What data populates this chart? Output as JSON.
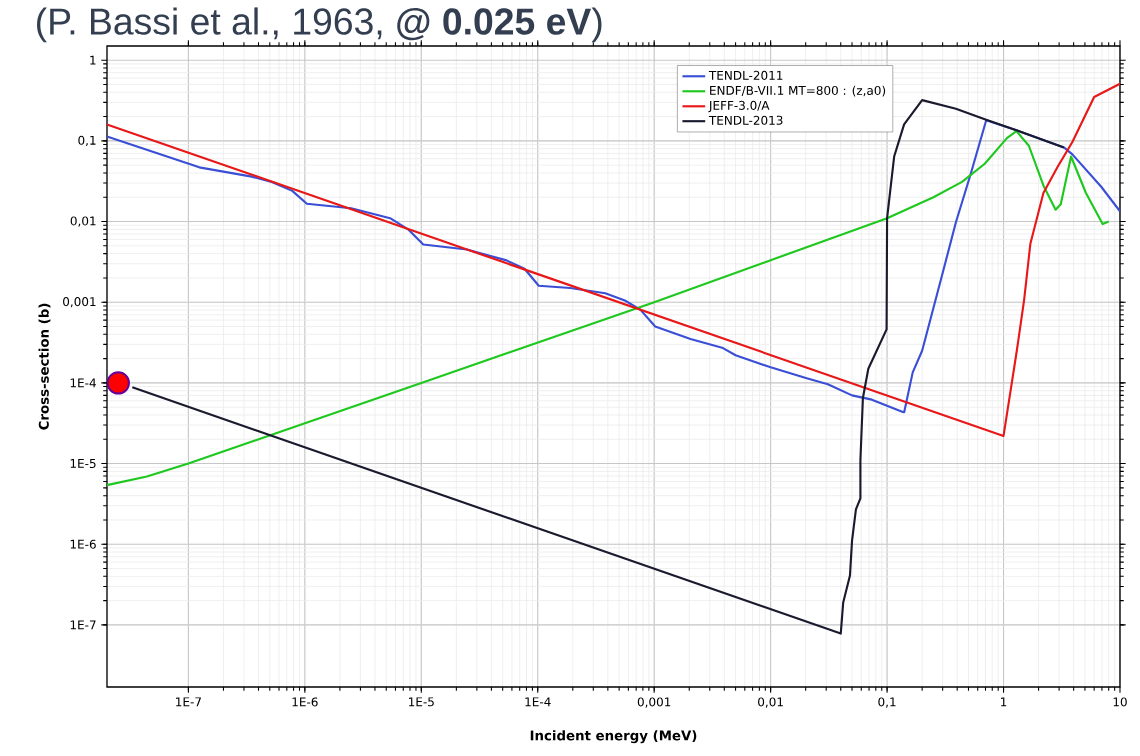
{
  "chart_data": {
    "type": "line",
    "title": "(P. Bassi et al., 1963, **@ 0.025 eV**)",
    "xlabel": "Incident energy (MeV)",
    "ylabel": "Cross-section (b)",
    "log": "xy",
    "grid": true,
    "legend": "top right",
    "xlim": [
      2e-08,
      10
    ],
    "ylim": [
      1.7e-08,
      1.5
    ],
    "xticks": [
      {
        "value": 1e-07,
        "label": "1E-7"
      },
      {
        "value": 1e-06,
        "label": "1E-6"
      },
      {
        "value": 1e-05,
        "label": "1E-5"
      },
      {
        "value": 0.0001,
        "label": "1E-4"
      },
      {
        "value": 0.001,
        "label": "0,001"
      },
      {
        "value": 0.01,
        "label": "0,01"
      },
      {
        "value": 0.1,
        "label": "0,1"
      },
      1,
      10
    ],
    "yticks": [
      {
        "value": 1e-07,
        "label": "1E-7"
      },
      {
        "value": 1e-06,
        "label": "1E-6"
      },
      {
        "value": 1e-05,
        "label": "1E-5"
      },
      {
        "value": 0.0001,
        "label": "1E-4"
      },
      {
        "value": 0.001,
        "label": "0,001"
      },
      {
        "value": 0.01,
        "label": "0,01"
      },
      {
        "value": 0.1,
        "label": "0,1"
      },
      1
    ],
    "series": [
      {
        "name": "TENDL-2011",
        "color": "#3a4fd6",
        "x": [
          2e-08,
          1.24e-07,
          3.5e-07,
          5.2e-07,
          7.8e-07,
          1.04e-06,
          2.5e-06,
          5.4e-06,
          7.7e-06,
          1.04e-05,
          2.46e-05,
          5.4e-05,
          7.7e-05,
          0.000102,
          0.00019,
          0.00038,
          0.00056,
          0.00076,
          0.00102,
          0.00205,
          0.0039,
          0.005,
          0.01,
          0.0204,
          0.031,
          0.05,
          0.074,
          0.14,
          0.166,
          0.2,
          0.3,
          0.39,
          0.52,
          0.71,
          1.29,
          3.3,
          3.9,
          6.9,
          10
        ],
        "values": [
          0.113,
          0.047,
          0.036,
          0.031,
          0.024,
          0.0166,
          0.0146,
          0.011,
          0.008,
          0.0052,
          0.0045,
          0.0033,
          0.0026,
          0.0016,
          0.0015,
          0.00129,
          0.00105,
          0.00081,
          0.0005,
          0.00035,
          0.00027,
          0.00022,
          0.000156,
          0.000114,
          9.6e-05,
          7e-05,
          6.2e-05,
          4.3e-05,
          0.000135,
          0.00025,
          0.0023,
          0.0098,
          0.038,
          0.18,
          0.135,
          0.083,
          0.068,
          0.027,
          0.0134
        ]
      },
      {
        "name": "ENDF/B-VII.1  MT=800 : (z,a0)",
        "color": "#1ec81e",
        "x": [
          2e-08,
          4.4e-08,
          1e-07,
          1e-05,
          0.001,
          0.1,
          0.25,
          0.44,
          0.69,
          1.07,
          1.29,
          1.65,
          2.2,
          2.8,
          3.1,
          3.8,
          5.1,
          7.1,
          8
        ],
        "values": [
          5.4e-06,
          6.9e-06,
          1e-05,
          0.0001,
          0.001,
          0.011,
          0.02,
          0.031,
          0.052,
          0.108,
          0.132,
          0.087,
          0.028,
          0.014,
          0.0164,
          0.064,
          0.0226,
          0.0093,
          0.01
        ]
      },
      {
        "name": "JEFF-3.0/A",
        "color": "#e81818",
        "x": [
          2e-08,
          1,
          1.3,
          1.5,
          1.7,
          2.2,
          2.9,
          3.9,
          6,
          10
        ],
        "values": [
          0.16,
          2.2e-05,
          0.00025,
          0.00105,
          0.0053,
          0.0226,
          0.047,
          0.097,
          0.35,
          0.51
        ]
      },
      {
        "name": "TENDL-2013",
        "color": "#1a1a2e",
        "x": [
          3.3e-08,
          0.04,
          0.042,
          0.048,
          0.05,
          0.054,
          0.059,
          0.059,
          0.062,
          0.069,
          0.099,
          0.1,
          0.115,
          0.14,
          0.2,
          0.39,
          0.69,
          1.29,
          3.3
        ],
        "values": [
          8.8e-05,
          7.8e-08,
          1.9e-07,
          4.1e-07,
          1.1e-06,
          2.7e-06,
          3.7e-06,
          1.1e-05,
          6.5e-05,
          0.00015,
          0.00046,
          0.011,
          0.064,
          0.16,
          0.32,
          0.25,
          0.185,
          0.135,
          0.083
        ]
      },
      {
        "type": "scatter",
        "color": "#ff0000",
        "x": [
          2.5e-08
        ],
        "values": [
          0.0001
        ]
      }
    ]
  }
}
